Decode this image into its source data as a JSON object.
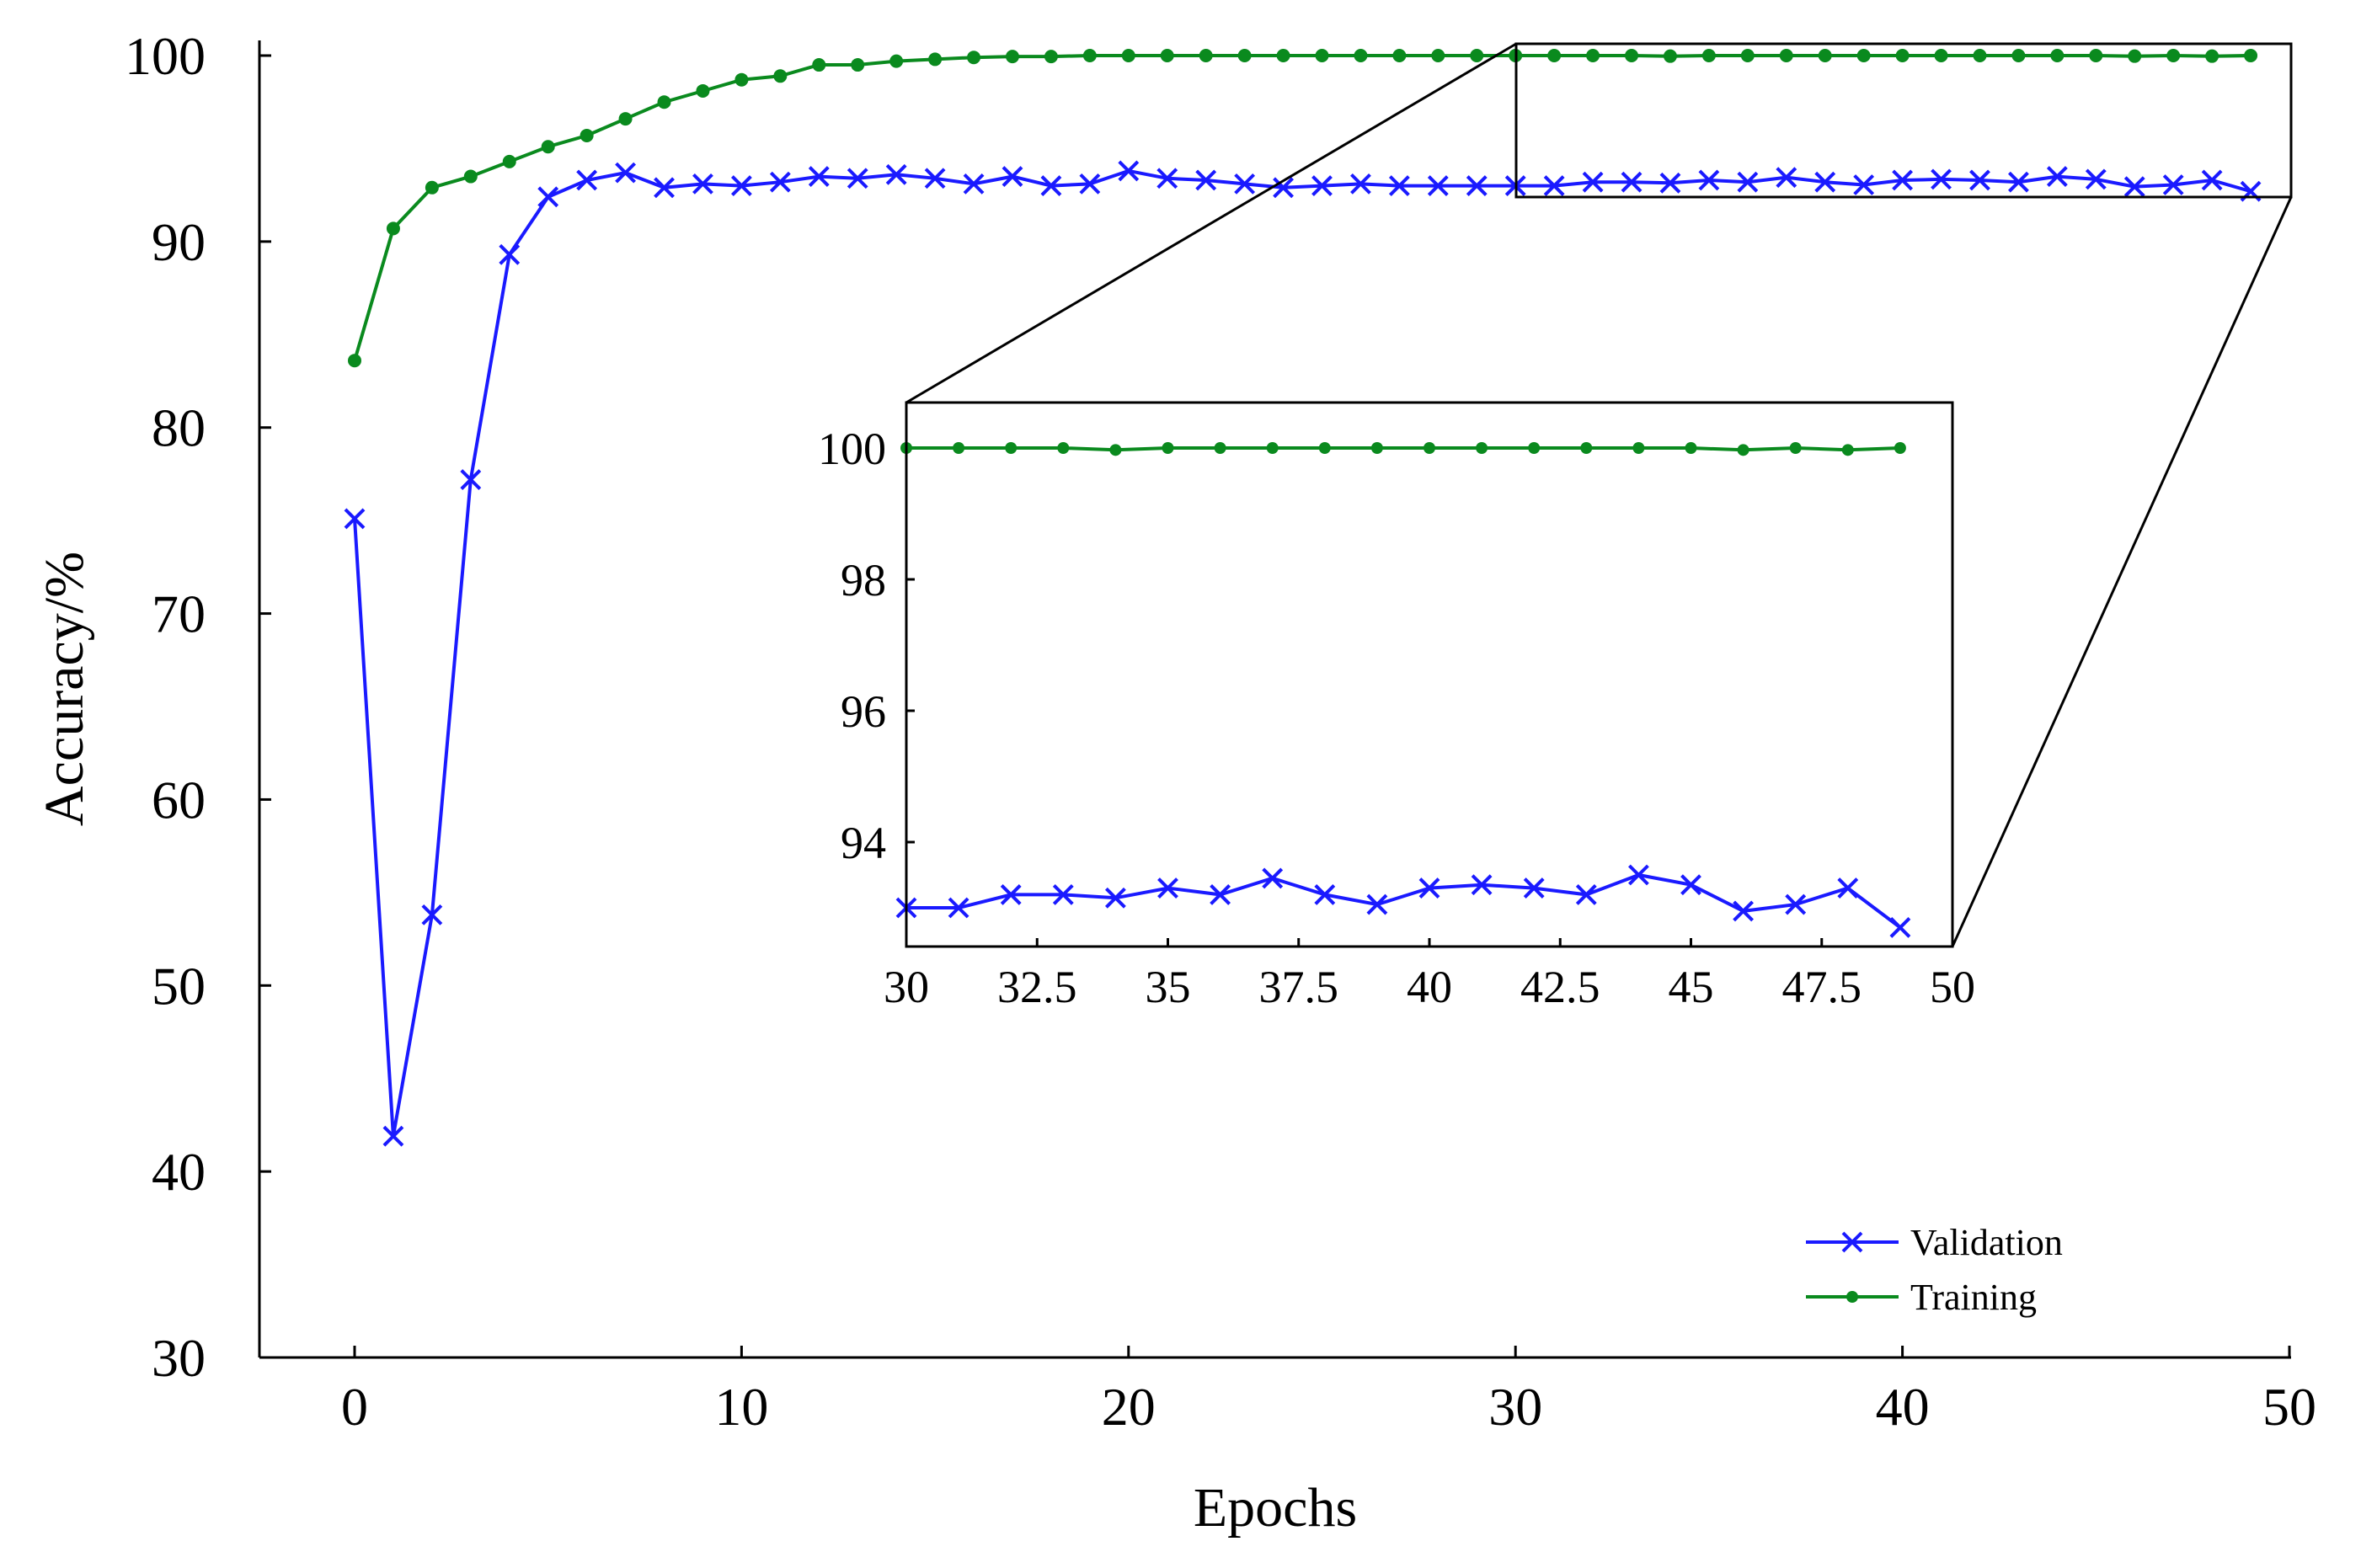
{
  "chart_data": [
    {
      "type": "line",
      "title": "",
      "xlabel": "Epochs",
      "ylabel": "Accuracy/%",
      "xlim": [
        -2.5,
        50
      ],
      "ylim": [
        30,
        100
      ],
      "xticks": [
        0,
        10,
        20,
        30,
        40,
        50
      ],
      "yticks": [
        30,
        40,
        50,
        60,
        70,
        80,
        90,
        100
      ],
      "grid": false,
      "legend_position": "bottom-right",
      "series": [
        {
          "name": "Validation",
          "color": "#1a1aff",
          "marker": "x",
          "x": [
            0,
            1,
            2,
            3,
            4,
            5,
            6,
            7,
            8,
            9,
            10,
            11,
            12,
            13,
            14,
            15,
            16,
            17,
            18,
            19,
            20,
            21,
            22,
            23,
            24,
            25,
            26,
            27,
            28,
            29,
            30,
            31,
            32,
            33,
            34,
            35,
            36,
            37,
            38,
            39,
            40,
            41,
            42,
            43,
            44,
            45,
            46,
            47,
            48,
            49
          ],
          "values": [
            75.1,
            41.9,
            53.8,
            77.2,
            89.3,
            92.4,
            93.3,
            93.7,
            92.9,
            93.1,
            93.0,
            93.2,
            93.5,
            93.4,
            93.6,
            93.4,
            93.1,
            93.5,
            93.0,
            93.1,
            93.8,
            93.4,
            93.3,
            93.1,
            92.9,
            93.0,
            93.1,
            93.0,
            93.0,
            93.0,
            93.0,
            93.0,
            93.2,
            93.2,
            93.15,
            93.3,
            93.2,
            93.45,
            93.2,
            93.05,
            93.3,
            93.35,
            93.3,
            93.2,
            93.5,
            93.35,
            92.95,
            93.05,
            93.3,
            92.7
          ]
        },
        {
          "name": "Training",
          "color": "#0a8a1e",
          "marker": "dot",
          "x": [
            0,
            1,
            2,
            3,
            4,
            5,
            6,
            7,
            8,
            9,
            10,
            11,
            12,
            13,
            14,
            15,
            16,
            17,
            18,
            19,
            20,
            21,
            22,
            23,
            24,
            25,
            26,
            27,
            28,
            29,
            30,
            31,
            32,
            33,
            34,
            35,
            36,
            37,
            38,
            39,
            40,
            41,
            42,
            43,
            44,
            45,
            46,
            47,
            48,
            49
          ],
          "values": [
            83.6,
            90.7,
            92.9,
            93.5,
            94.3,
            95.1,
            95.7,
            96.6,
            97.5,
            98.1,
            98.7,
            98.9,
            99.5,
            99.5,
            99.7,
            99.8,
            99.9,
            99.95,
            99.95,
            100,
            100,
            100,
            100,
            100,
            100,
            100,
            100,
            100,
            100,
            100,
            100,
            100,
            100,
            100,
            99.97,
            100,
            100,
            100,
            100,
            100,
            100,
            100,
            100,
            100,
            100,
            100,
            99.97,
            100,
            99.97,
            100
          ]
        }
      ]
    },
    {
      "type": "line",
      "title": "",
      "xlabel": "",
      "ylabel": "",
      "xlim": [
        30,
        50
      ],
      "ylim": [
        92.4,
        100.7
      ],
      "xticks": [
        30,
        32.5,
        35,
        37.5,
        40,
        42.5,
        45,
        47.5,
        50
      ],
      "xtick_labels": [
        "30",
        "32.5",
        "35",
        "37.5",
        "40",
        "42.5",
        "45",
        "47.5",
        "50"
      ],
      "yticks": [
        94,
        96,
        98,
        100
      ],
      "grid": false,
      "series_ref": "zoom of epochs 30-49"
    }
  ],
  "legend": {
    "items": [
      {
        "label": "Validation",
        "color": "#1a1aff",
        "marker": "x"
      },
      {
        "label": "Training",
        "color": "#0a8a1e",
        "marker": "dot"
      }
    ]
  }
}
